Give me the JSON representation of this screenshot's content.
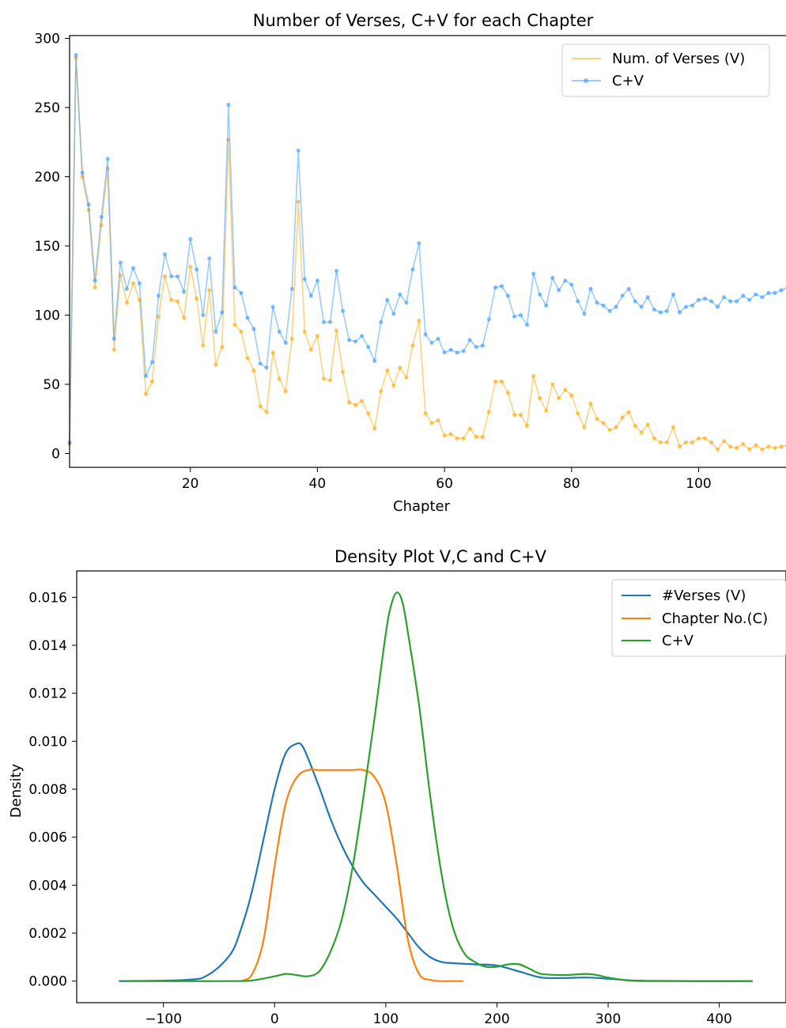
{
  "chart_data": [
    {
      "type": "line",
      "title": "Number of Verses, C+V for each Chapter",
      "xlabel": "Chapter",
      "ylabel": "",
      "xlim": [
        1,
        114
      ],
      "ylim": [
        -10,
        302
      ],
      "xticks": [
        20,
        40,
        60,
        80,
        100
      ],
      "yticks": [
        0,
        50,
        100,
        150,
        200,
        250,
        300
      ],
      "grid": false,
      "legend_position": "top-right",
      "x": [
        1,
        2,
        3,
        4,
        5,
        6,
        7,
        8,
        9,
        10,
        11,
        12,
        13,
        14,
        15,
        16,
        17,
        18,
        19,
        20,
        21,
        22,
        23,
        24,
        25,
        26,
        27,
        28,
        29,
        30,
        31,
        32,
        33,
        34,
        35,
        36,
        37,
        38,
        39,
        40,
        41,
        42,
        43,
        44,
        45,
        46,
        47,
        48,
        49,
        50,
        51,
        52,
        53,
        54,
        55,
        56,
        57,
        58,
        59,
        60,
        61,
        62,
        63,
        64,
        65,
        66,
        67,
        68,
        69,
        70,
        71,
        72,
        73,
        74,
        75,
        76,
        77,
        78,
        79,
        80,
        81,
        82,
        83,
        84,
        85,
        86,
        87,
        88,
        89,
        90,
        91,
        92,
        93,
        94,
        95,
        96,
        97,
        98,
        99,
        100,
        101,
        102,
        103,
        104,
        105,
        106,
        107,
        108,
        109,
        110,
        111,
        112,
        113,
        114
      ],
      "series": [
        {
          "name": "Num. of Verses (V)",
          "color": "#ffa500",
          "marker": "dot",
          "values": [
            7,
            286,
            200,
            176,
            120,
            165,
            206,
            75,
            129,
            109,
            123,
            111,
            43,
            52,
            99,
            128,
            111,
            110,
            98,
            135,
            112,
            78,
            118,
            64,
            77,
            227,
            93,
            88,
            69,
            60,
            34,
            30,
            73,
            54,
            45,
            83,
            182,
            88,
            75,
            85,
            54,
            53,
            89,
            59,
            37,
            35,
            38,
            29,
            18,
            45,
            60,
            49,
            62,
            55,
            78,
            96,
            29,
            22,
            24,
            13,
            14,
            11,
            11,
            18,
            12,
            12,
            30,
            52,
            52,
            44,
            28,
            28,
            20,
            56,
            40,
            31,
            50,
            40,
            46,
            42,
            29,
            19,
            36,
            25,
            22,
            17,
            19,
            26,
            30,
            20,
            15,
            21,
            11,
            8,
            8,
            19,
            5,
            8,
            8,
            11,
            11,
            8,
            3,
            9,
            5,
            4,
            7,
            3,
            6,
            3,
            5,
            4,
            5,
            6
          ]
        },
        {
          "name": "C+V",
          "color": "#3399ff",
          "marker": "dot",
          "values": [
            8,
            288,
            203,
            180,
            125,
            171,
            213,
            83,
            138,
            119,
            134,
            123,
            56,
            66,
            114,
            144,
            128,
            128,
            117,
            155,
            133,
            100,
            141,
            88,
            102,
            252,
            120,
            116,
            98,
            90,
            65,
            62,
            106,
            88,
            80,
            119,
            219,
            126,
            114,
            125,
            95,
            95,
            132,
            103,
            82,
            81,
            85,
            77,
            67,
            95,
            111,
            101,
            115,
            109,
            133,
            152,
            86,
            80,
            83,
            73,
            75,
            73,
            74,
            82,
            77,
            78,
            97,
            120,
            121,
            114,
            99,
            100,
            93,
            130,
            115,
            107,
            127,
            118,
            125,
            122,
            110,
            101,
            119,
            109,
            107,
            103,
            106,
            114,
            119,
            110,
            106,
            113,
            104,
            102,
            103,
            115,
            102,
            106,
            107,
            111,
            112,
            110,
            106,
            113,
            110,
            110,
            114,
            111,
            115,
            113,
            116,
            116,
            118,
            120
          ]
        }
      ]
    },
    {
      "type": "line",
      "title": "Density Plot V,C and C+V",
      "xlabel": "",
      "ylabel": "Density",
      "xlim": [
        -178,
        460
      ],
      "ylim": [
        -0.0009,
        0.0171
      ],
      "xticks": [
        -100,
        0,
        100,
        200,
        300,
        400
      ],
      "xtick_labels": [
        "−100",
        "0",
        "100",
        "200",
        "300",
        "400"
      ],
      "yticks": [
        0.0,
        0.002,
        0.004,
        0.006,
        0.008,
        0.01,
        0.012,
        0.014,
        0.016
      ],
      "ytick_labels": [
        "0.000",
        "0.002",
        "0.004",
        "0.006",
        "0.008",
        "0.010",
        "0.012",
        "0.014",
        "0.016"
      ],
      "grid": false,
      "legend_position": "top-right",
      "series": [
        {
          "name": "#Verses (V)",
          "color": "#1f77b4",
          "x": [
            -140,
            -80,
            -60,
            -40,
            -30,
            -20,
            -10,
            0,
            10,
            20,
            25,
            30,
            40,
            50,
            60,
            70,
            80,
            90,
            100,
            110,
            120,
            130,
            140,
            150,
            160,
            180,
            200,
            220,
            240,
            260,
            280,
            300,
            320,
            340,
            380,
            430
          ],
          "values": [
            0,
            5e-05,
            0.00025,
            0.0011,
            0.0022,
            0.0038,
            0.0059,
            0.008,
            0.0095,
            0.0099,
            0.0098,
            0.0093,
            0.0081,
            0.0068,
            0.0057,
            0.0048,
            0.0041,
            0.0036,
            0.0031,
            0.0026,
            0.002,
            0.0014,
            0.001,
            0.0008,
            0.00075,
            0.0007,
            0.00065,
            0.0004,
            0.00015,
            0.00013,
            0.00015,
            0.0001,
            3e-05,
            1e-05,
            0,
            0
          ]
        },
        {
          "name": "Chapter No.(C)",
          "color": "#ff7f0e",
          "x": [
            -30,
            -20,
            -10,
            0,
            10,
            20,
            30,
            40,
            50,
            60,
            70,
            80,
            90,
            100,
            110,
            120,
            130,
            140,
            150,
            160,
            170
          ],
          "values": [
            0,
            0.0003,
            0.0017,
            0.0048,
            0.0074,
            0.0085,
            0.0088,
            0.0088,
            0.0088,
            0.0088,
            0.0088,
            0.0088,
            0.0085,
            0.0074,
            0.0048,
            0.0017,
            0.0003,
            5e-05,
            0,
            0,
            0
          ]
        },
        {
          "name": "C+V",
          "color": "#2ca02c",
          "x": [
            -135,
            -40,
            -20,
            0,
            10,
            20,
            30,
            40,
            50,
            60,
            70,
            80,
            90,
            100,
            105,
            110,
            115,
            120,
            130,
            140,
            150,
            160,
            170,
            180,
            190,
            200,
            210,
            220,
            230,
            240,
            260,
            280,
            290,
            300,
            320,
            360,
            430
          ],
          "values": [
            0,
            0,
            3e-05,
            0.0002,
            0.0003,
            0.00025,
            0.0002,
            0.0004,
            0.0012,
            0.0025,
            0.0047,
            0.0077,
            0.011,
            0.0145,
            0.0157,
            0.0162,
            0.0158,
            0.0145,
            0.0115,
            0.0077,
            0.0045,
            0.0023,
            0.0012,
            0.0008,
            0.0006,
            0.0006,
            0.0007,
            0.0007,
            0.0005,
            0.0003,
            0.00025,
            0.0003,
            0.00025,
            0.00015,
            2e-05,
            0,
            0
          ]
        }
      ]
    }
  ]
}
